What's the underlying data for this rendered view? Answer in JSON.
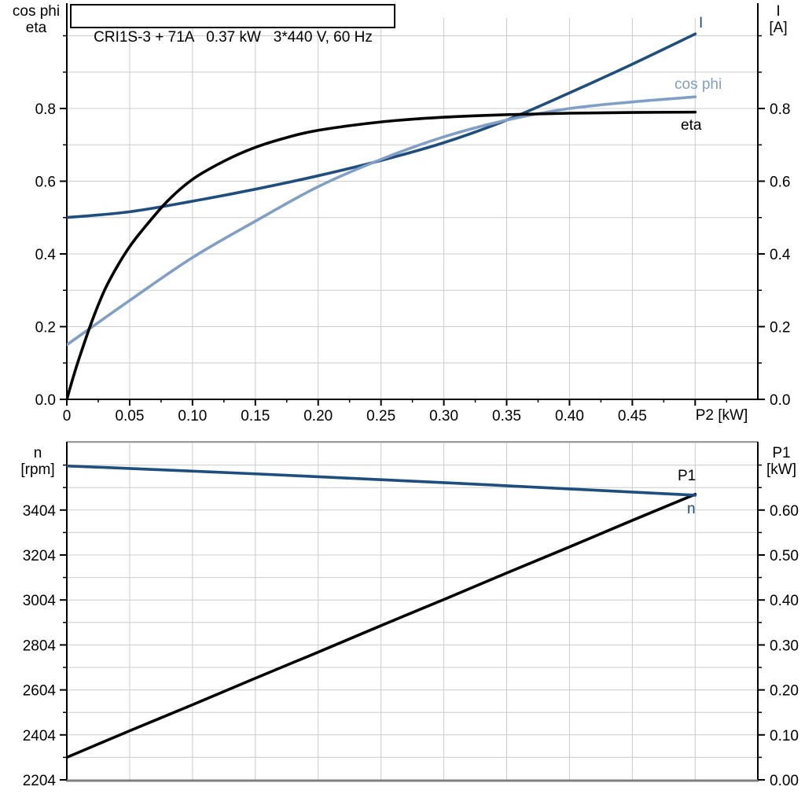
{
  "title": "CRI1S-3 + 71A   0.37 kW   3*440 V, 60 Hz",
  "colors": {
    "dark_blue": "#1d4e7e",
    "light_blue": "#7f9fc6",
    "black": "#000000",
    "grid": "#cccccc",
    "frame_gray": "#808080",
    "background": "#ffffff"
  },
  "chart_data": [
    {
      "name": "motor-electrical-performance",
      "type": "line",
      "title": "CRI1S-3 + 71A   0.37 kW   3*440 V, 60 Hz",
      "xlabel": "P2 [kW]",
      "ylabel_left": "cos phi / eta",
      "ylabel_right": "I [A]",
      "axis_titles": {
        "left": [
          "cos phi",
          "eta"
        ],
        "right": [
          "I",
          "[A]"
        ],
        "x": "P2 [kW]"
      },
      "xlim": [
        0,
        0.55
      ],
      "ylim": [
        0,
        1.05
      ],
      "grid": true,
      "x_ticks": {
        "values": [
          0,
          0.05,
          0.1,
          0.15,
          0.2,
          0.25,
          0.3,
          0.35,
          0.4,
          0.45
        ],
        "labels": [
          "0",
          "0.05",
          "0.10",
          "0.15",
          "0.20",
          "0.25",
          "0.30",
          "0.35",
          "0.40",
          "0.45"
        ]
      },
      "y_ticks": {
        "values": [
          0,
          0.2,
          0.4,
          0.6,
          0.8
        ],
        "labels": [
          "0.0",
          "0.2",
          "0.4",
          "0.6",
          "0.8"
        ]
      },
      "series": [
        {
          "name": "current",
          "label": "I",
          "color_key": "dark_blue",
          "x": [
            0,
            0.05,
            0.1,
            0.15,
            0.2,
            0.25,
            0.3,
            0.35,
            0.4,
            0.45,
            0.5
          ],
          "y": [
            0.5,
            0.516,
            0.545,
            0.578,
            0.615,
            0.657,
            0.706,
            0.768,
            0.843,
            0.922,
            1.005
          ]
        },
        {
          "name": "cos-phi",
          "label": "cos phi",
          "color_key": "light_blue",
          "x": [
            0,
            0.05,
            0.1,
            0.15,
            0.2,
            0.25,
            0.3,
            0.35,
            0.4,
            0.45,
            0.5
          ],
          "y": [
            0.15,
            0.272,
            0.39,
            0.49,
            0.585,
            0.66,
            0.722,
            0.768,
            0.8,
            0.818,
            0.832
          ]
        },
        {
          "name": "efficiency",
          "label": "eta",
          "color_key": "black",
          "x": [
            0,
            0.005,
            0.01,
            0.02,
            0.03,
            0.04,
            0.05,
            0.06,
            0.08,
            0.1,
            0.125,
            0.15,
            0.175,
            0.2,
            0.25,
            0.3,
            0.35,
            0.4,
            0.45,
            0.5
          ],
          "y": [
            0,
            0.06,
            0.115,
            0.215,
            0.3,
            0.365,
            0.42,
            0.465,
            0.545,
            0.605,
            0.655,
            0.693,
            0.72,
            0.74,
            0.763,
            0.776,
            0.783,
            0.787,
            0.789,
            0.79
          ]
        }
      ]
    },
    {
      "name": "speed-and-input-power",
      "type": "line",
      "xlabel": "",
      "ylabel_left": "n [rpm]",
      "ylabel_right": "P1 [kW]",
      "axis_titles": {
        "left": [
          "n",
          "[rpm]"
        ],
        "right": [
          "P1",
          "[kW]"
        ]
      },
      "xlim": [
        0,
        0.55
      ],
      "ylim_left": [
        2146,
        3708
      ],
      "ylim_right": [
        0,
        0.752
      ],
      "grid": true,
      "left_ticks": {
        "values": [
          2204,
          2404,
          2604,
          2804,
          3004,
          3204,
          3404
        ],
        "labels": [
          "2204",
          "2404",
          "2604",
          "2804",
          "3004",
          "3204",
          "3404"
        ]
      },
      "right_ticks": {
        "values": [
          0,
          0.1,
          0.2,
          0.3,
          0.4,
          0.5,
          0.6
        ],
        "labels": [
          "0.00",
          "0.10",
          "0.20",
          "0.30",
          "0.40",
          "0.50",
          "0.60"
        ]
      },
      "series": [
        {
          "name": "input-power",
          "label": "P1",
          "axis": "right",
          "color_key": "black",
          "x": [
            0,
            0.05,
            0.1,
            0.15,
            0.2,
            0.25,
            0.3,
            0.35,
            0.4,
            0.45,
            0.5
          ],
          "y": [
            0.05,
            0.109,
            0.167,
            0.226,
            0.284,
            0.343,
            0.401,
            0.46,
            0.518,
            0.577,
            0.635
          ]
        },
        {
          "name": "speed",
          "label": "n",
          "axis": "left",
          "color_key": "dark_blue",
          "x": [
            0,
            0.05,
            0.1,
            0.15,
            0.2,
            0.25,
            0.3,
            0.35,
            0.4,
            0.45,
            0.5
          ],
          "y": [
            3600,
            3589,
            3577,
            3565,
            3552,
            3539,
            3526,
            3512,
            3498,
            3484,
            3470
          ]
        }
      ]
    }
  ]
}
